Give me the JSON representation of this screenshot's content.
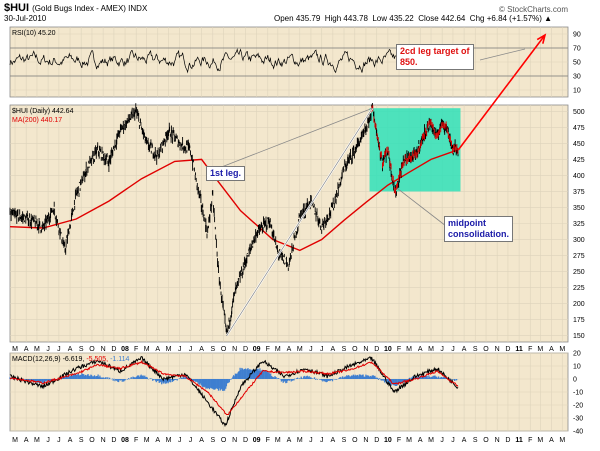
{
  "header": {
    "ticker": "$HUI",
    "ticker_name": "(Gold Bugs Index - AMEX) INDX",
    "date": "30-Jul-2010",
    "brand": "© StockCharts.com",
    "open_label": "Open",
    "open_value": "435.79",
    "high_label": "High",
    "high_value": "443.78",
    "low_label": "Low",
    "low_value": "435.22",
    "close_label": "Close",
    "close_value": "442.64",
    "chg_label": "Chg",
    "chg_value": "+6.84 (+1.57%)",
    "chg_arrow": "up-arrow-icon"
  },
  "colors": {
    "panel_bg": "#f3e7cd",
    "grid": "#ddd3bb",
    "price": "#000000",
    "ma": "#e00000",
    "rsi": "#000000",
    "macd": "#000000",
    "signal": "#e00000",
    "hist": "#3f7fd0",
    "box": "#2fe0b8",
    "arrow": "#ff0000"
  },
  "annotations": {
    "target": [
      "2cd leg target of",
      "850."
    ],
    "first_leg": "1st leg.",
    "midpoint": [
      "midpoint",
      "consolidation."
    ]
  },
  "chart_data": [
    {
      "panel": "rsi",
      "type": "line",
      "legend": [
        "RSI(10)",
        "45.20"
      ],
      "ylim": [
        0,
        100
      ],
      "yticks": [
        10,
        30,
        50,
        70,
        90
      ],
      "reference_lines": [
        30,
        70
      ]
    },
    {
      "panel": "price",
      "type": "line",
      "legend": [
        "$HUI (Daily)",
        "442.64"
      ],
      "ma_legend": [
        "MA(200)",
        "440.17"
      ],
      "ylim": [
        140,
        510
      ],
      "yticks": [
        150,
        175,
        200,
        225,
        250,
        275,
        300,
        325,
        350,
        375,
        400,
        425,
        450,
        475,
        500
      ],
      "x_start": "2007-03-01",
      "x_end": "2011-05-31",
      "price": [
        [
          "2007-03-01",
          340
        ],
        [
          "2007-04-01",
          335
        ],
        [
          "2007-05-01",
          330
        ],
        [
          "2007-06-01",
          318
        ],
        [
          "2007-07-01",
          350
        ],
        [
          "2007-08-01",
          282
        ],
        [
          "2007-09-01",
          368
        ],
        [
          "2007-10-01",
          410
        ],
        [
          "2007-11-01",
          440
        ],
        [
          "2007-12-01",
          420
        ],
        [
          "2008-01-01",
          470
        ],
        [
          "2008-02-15",
          500
        ],
        [
          "2008-03-15",
          450
        ],
        [
          "2008-04-15",
          430
        ],
        [
          "2008-05-15",
          470
        ],
        [
          "2008-06-15",
          450
        ],
        [
          "2008-07-15",
          440
        ],
        [
          "2008-08-01",
          390
        ],
        [
          "2008-09-01",
          310
        ],
        [
          "2008-09-15",
          370
        ],
        [
          "2008-10-01",
          250
        ],
        [
          "2008-10-24",
          150
        ],
        [
          "2008-11-15",
          215
        ],
        [
          "2008-12-15",
          265
        ],
        [
          "2009-01-15",
          310
        ],
        [
          "2009-02-20",
          330
        ],
        [
          "2009-03-15",
          280
        ],
        [
          "2009-04-15",
          260
        ],
        [
          "2009-05-15",
          335
        ],
        [
          "2009-06-15",
          360
        ],
        [
          "2009-07-15",
          320
        ],
        [
          "2009-08-15",
          350
        ],
        [
          "2009-09-15",
          410
        ],
        [
          "2009-10-15",
          440
        ],
        [
          "2009-11-15",
          470
        ],
        [
          "2009-12-03",
          505
        ],
        [
          "2009-12-31",
          420
        ],
        [
          "2010-01-15",
          440
        ],
        [
          "2010-02-05",
          370
        ],
        [
          "2010-03-01",
          425
        ],
        [
          "2010-04-01",
          430
        ],
        [
          "2010-05-01",
          470
        ],
        [
          "2010-05-15",
          480
        ],
        [
          "2010-06-01",
          460
        ],
        [
          "2010-06-15",
          485
        ],
        [
          "2010-07-01",
          470
        ],
        [
          "2010-07-15",
          440
        ],
        [
          "2010-07-30",
          442.64
        ]
      ],
      "ma200": [
        [
          "2007-03-01",
          320
        ],
        [
          "2007-06-01",
          318
        ],
        [
          "2007-09-01",
          332
        ],
        [
          "2007-12-01",
          360
        ],
        [
          "2008-03-01",
          395
        ],
        [
          "2008-06-01",
          422
        ],
        [
          "2008-08-15",
          425
        ],
        [
          "2008-10-01",
          390
        ],
        [
          "2008-12-01",
          345
        ],
        [
          "2009-03-01",
          300
        ],
        [
          "2009-05-15",
          283
        ],
        [
          "2009-07-15",
          300
        ],
        [
          "2009-09-15",
          330
        ],
        [
          "2009-11-15",
          358
        ],
        [
          "2010-01-15",
          385
        ],
        [
          "2010-03-15",
          405
        ],
        [
          "2010-05-15",
          425
        ],
        [
          "2010-07-30",
          440.17
        ]
      ],
      "projection": [
        [
          "2010-07-30",
          440
        ],
        [
          "2011-04-15",
          850
        ]
      ]
    },
    {
      "panel": "macd",
      "type": "line",
      "legend": [
        "MACD(12,26,9)",
        "-6.619",
        "-5.505",
        "-1.114"
      ],
      "ylim": [
        -40,
        20
      ],
      "yticks": [
        -40,
        -30,
        -20,
        -10,
        0,
        10,
        20
      ],
      "series": [
        {
          "name": "MACD",
          "values": [
            [
              "2007-03-01",
              2
            ],
            [
              "2007-06-01",
              -6
            ],
            [
              "2007-09-01",
              8
            ],
            [
              "2007-11-01",
              14
            ],
            [
              "2008-01-01",
              6
            ],
            [
              "2008-03-01",
              16
            ],
            [
              "2008-05-01",
              0
            ],
            [
              "2008-07-01",
              4
            ],
            [
              "2008-09-01",
              -18
            ],
            [
              "2008-10-20",
              -36
            ],
            [
              "2008-12-01",
              -6
            ],
            [
              "2009-02-01",
              14
            ],
            [
              "2009-04-01",
              2
            ],
            [
              "2009-06-01",
              8
            ],
            [
              "2009-08-01",
              2
            ],
            [
              "2009-10-01",
              10
            ],
            [
              "2009-12-01",
              16
            ],
            [
              "2010-02-01",
              -10
            ],
            [
              "2010-04-01",
              2
            ],
            [
              "2010-06-01",
              8
            ],
            [
              "2010-07-30",
              -6.619
            ]
          ]
        },
        {
          "name": "Signal",
          "values": [
            [
              "2007-03-01",
              1
            ],
            [
              "2007-06-01",
              -3
            ],
            [
              "2007-09-01",
              4
            ],
            [
              "2007-11-01",
              11
            ],
            [
              "2008-01-01",
              8
            ],
            [
              "2008-03-01",
              13
            ],
            [
              "2008-05-01",
              4
            ],
            [
              "2008-07-01",
              2
            ],
            [
              "2008-09-01",
              -10
            ],
            [
              "2008-10-25",
              -28
            ],
            [
              "2008-12-01",
              -15
            ],
            [
              "2009-02-01",
              6
            ],
            [
              "2009-04-01",
              5
            ],
            [
              "2009-06-01",
              6
            ],
            [
              "2009-08-01",
              4
            ],
            [
              "2009-10-01",
              7
            ],
            [
              "2009-12-01",
              13
            ],
            [
              "2010-02-01",
              -4
            ],
            [
              "2010-04-01",
              0
            ],
            [
              "2010-06-01",
              6
            ],
            [
              "2010-07-30",
              -5.505
            ]
          ]
        }
      ]
    }
  ],
  "x_axis": {
    "months": [
      "M",
      "A",
      "M",
      "J",
      "J",
      "A",
      "S",
      "O",
      "N",
      "D",
      "08",
      "F",
      "M",
      "A",
      "M",
      "J",
      "J",
      "A",
      "S",
      "O",
      "N",
      "D",
      "09",
      "F",
      "M",
      "A",
      "M",
      "J",
      "J",
      "A",
      "S",
      "O",
      "N",
      "D",
      "10",
      "F",
      "M",
      "A",
      "M",
      "J",
      "J",
      "A",
      "S",
      "O",
      "N",
      "D",
      "11",
      "F",
      "M",
      "A",
      "M"
    ],
    "year_labels": [
      "08",
      "09",
      "10",
      "11"
    ]
  }
}
